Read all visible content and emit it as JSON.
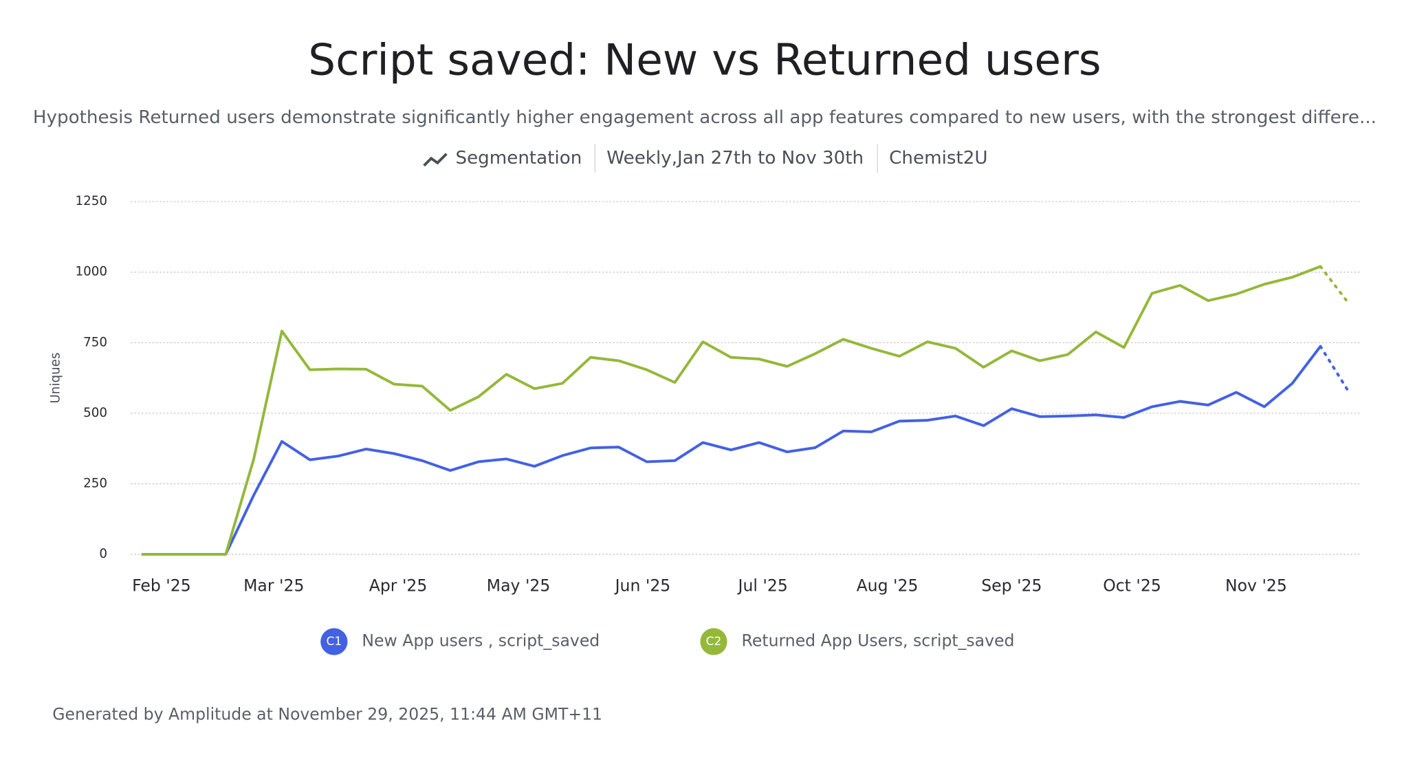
{
  "header": {
    "title": "Script saved: New vs Returned users",
    "subtitle": "Hypothesis Returned users demonstrate significantly higher engagement across all app features compared to new users, with the strongest differe...",
    "meta": [
      "Segmentation",
      "Weekly,Jan 27th to Nov 30th",
      "Chemist2U"
    ]
  },
  "chart_data": {
    "type": "line",
    "y_label": "Uniques",
    "categories": [
      null,
      null,
      null,
      null,
      null,
      null,
      null,
      null,
      null,
      null,
      null,
      null,
      null,
      null,
      null,
      null,
      null,
      null,
      null,
      null,
      null,
      null,
      null,
      null,
      null,
      null,
      null,
      null,
      null,
      null,
      null,
      null,
      null,
      null,
      null,
      null,
      null,
      null,
      null,
      null,
      null,
      null,
      null,
      null
    ],
    "xticks": [
      {
        "value": 0.714,
        "label": "Feb '25"
      },
      {
        "value": 4.714,
        "label": "Mar '25"
      },
      {
        "value": 9.143,
        "label": "Apr '25"
      },
      {
        "value": 13.43,
        "label": "May '25"
      },
      {
        "value": 17.86,
        "label": "Jun '25"
      },
      {
        "value": 22.14,
        "label": "Jul '25"
      },
      {
        "value": 26.57,
        "label": "Aug '25"
      },
      {
        "value": 31,
        "label": "Sep '25"
      },
      {
        "value": 35.29,
        "label": "Oct '25"
      },
      {
        "value": 39.71,
        "label": "Nov '25"
      }
    ],
    "ylim": [
      0,
      1250
    ],
    "yticks": [
      0,
      250,
      500,
      750,
      1000,
      1250
    ],
    "grid": true,
    "series": [
      {
        "name": "New App users , script_saved",
        "badge": "C1",
        "color": "#4361e3",
        "values": [
          0,
          0,
          0,
          0,
          210,
          400,
          335,
          348,
          373,
          357,
          332,
          297,
          328,
          338,
          312,
          350,
          377,
          380,
          328,
          332,
          396,
          370,
          396,
          363,
          378,
          437,
          434,
          472,
          475,
          490,
          456,
          516,
          488,
          490,
          494,
          485,
          523,
          542,
          529,
          574,
          523,
          606,
          737,
          577
        ]
      },
      {
        "name": "Returned App Users, script_saved",
        "badge": "C2",
        "color": "#94b83a",
        "values": [
          0,
          0,
          0,
          0,
          338,
          791,
          654,
          657,
          656,
          603,
          596,
          510,
          558,
          638,
          587,
          606,
          698,
          686,
          654,
          609,
          753,
          698,
          692,
          666,
          711,
          762,
          730,
          702,
          753,
          730,
          663,
          721,
          686,
          708,
          788,
          733,
          925,
          953,
          899,
          922,
          957,
          982,
          1020,
          890
        ]
      }
    ]
  },
  "footer": "Generated by Amplitude at November 29, 2025, 11:44 AM GMT+11"
}
